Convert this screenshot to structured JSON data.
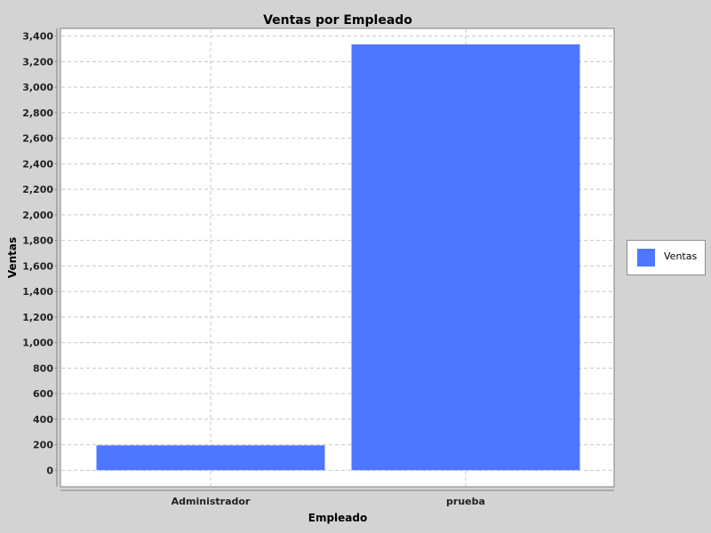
{
  "chart_data": {
    "type": "bar",
    "title": "Ventas por Empleado",
    "xlabel": "Empleado",
    "ylabel": "Ventas",
    "categories": [
      "Administrador",
      "prueba"
    ],
    "series": [
      {
        "name": "Ventas",
        "values": [
          195,
          3335
        ]
      }
    ],
    "ylim": [
      -130,
      3460
    ],
    "yticks": [
      0,
      200,
      400,
      600,
      800,
      1000,
      1200,
      1400,
      1600,
      1800,
      2000,
      2200,
      2400,
      2600,
      2800,
      3000,
      3200,
      3400
    ],
    "ytick_labels": [
      "0",
      "200",
      "400",
      "600",
      "800",
      "1,000",
      "1,200",
      "1,400",
      "1,600",
      "1,800",
      "2,000",
      "2,200",
      "2,400",
      "2,600",
      "2,800",
      "3,000",
      "3,200",
      "3,400"
    ],
    "grid": true,
    "legend_position": "right",
    "colors": {
      "bar": "#4f76ff",
      "background": "#d3d3d3",
      "plot_background": "#ffffff",
      "grid": "#c8c8c8"
    }
  }
}
